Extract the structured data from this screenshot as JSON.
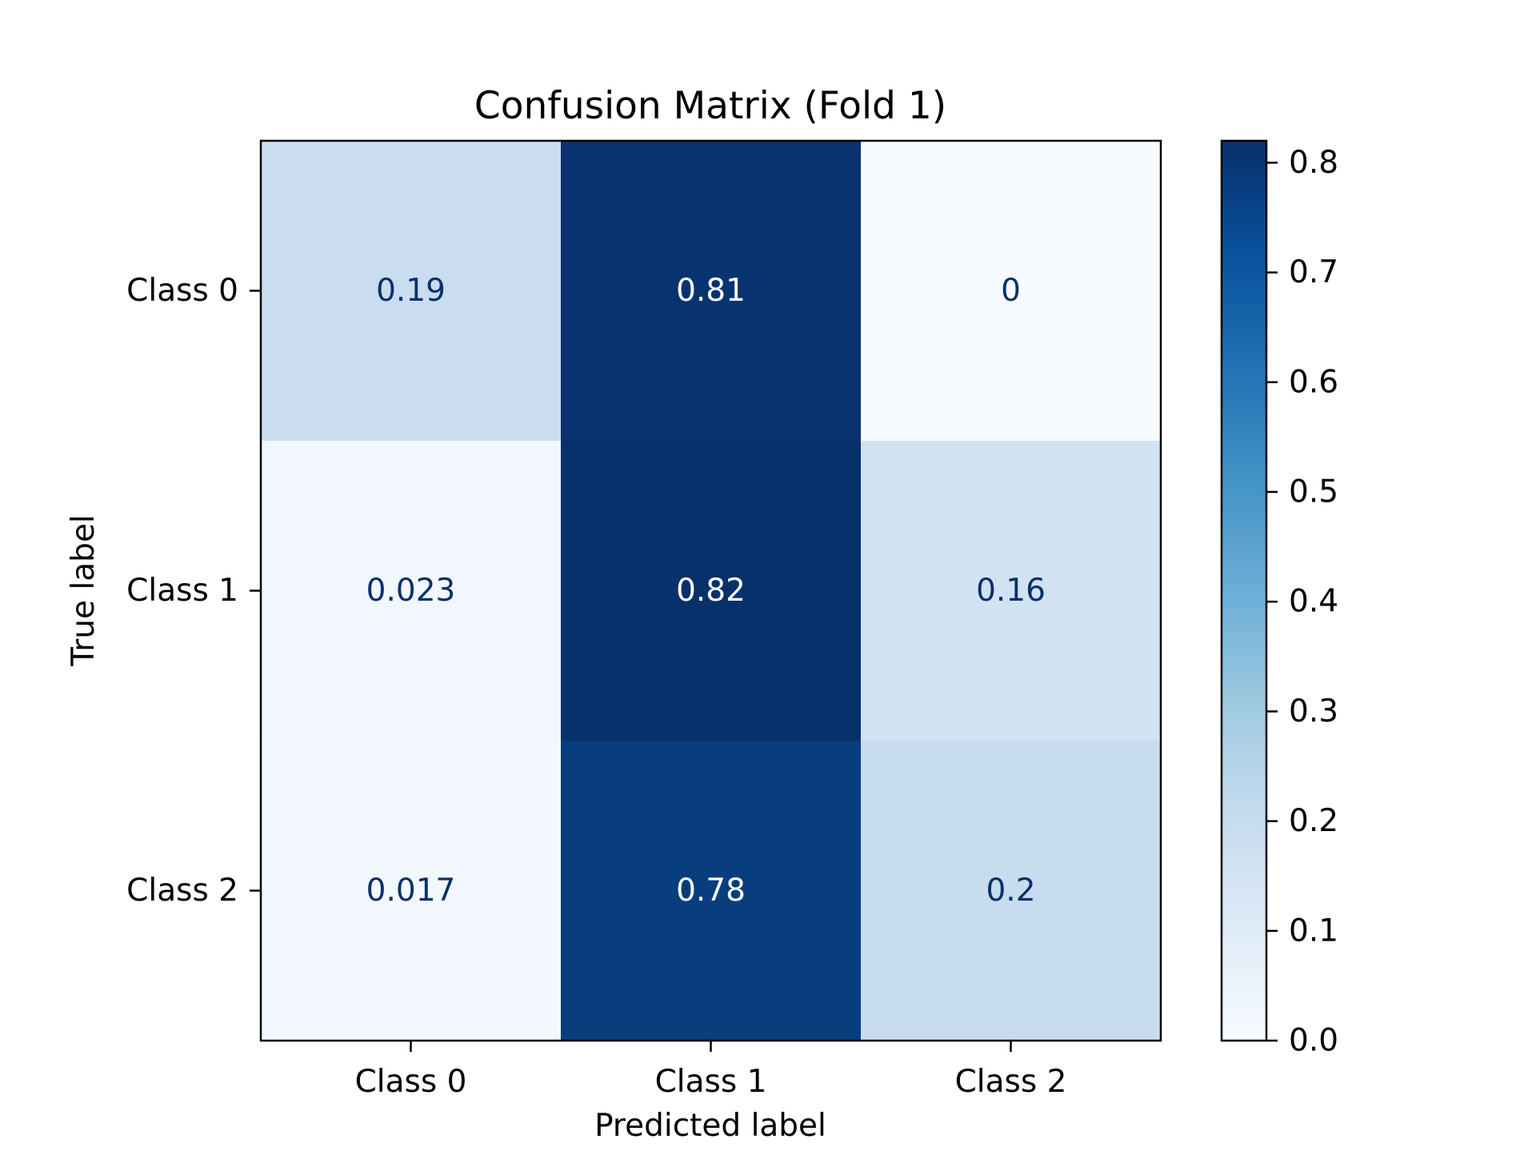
{
  "chart_data": {
    "type": "heatmap",
    "title": "Confusion Matrix (Fold 1)",
    "xlabel": "Predicted label",
    "ylabel": "True label",
    "x_categories": [
      "Class 0",
      "Class 1",
      "Class 2"
    ],
    "y_categories": [
      "Class 0",
      "Class 1",
      "Class 2"
    ],
    "values": [
      [
        0.19,
        0.81,
        0
      ],
      [
        0.023,
        0.82,
        0.16
      ],
      [
        0.017,
        0.78,
        0.2
      ]
    ],
    "value_labels": [
      [
        "0.19",
        "0.81",
        "0"
      ],
      [
        "0.023",
        "0.82",
        "0.16"
      ],
      [
        "0.017",
        "0.78",
        "0.2"
      ]
    ],
    "colormap": "Blues",
    "colorbar": {
      "range": [
        0,
        0.82
      ],
      "ticks": [
        0.0,
        0.1,
        0.2,
        0.3,
        0.4,
        0.5,
        0.6,
        0.7,
        0.8
      ],
      "tick_labels": [
        "0.0",
        "0.1",
        "0.2",
        "0.3",
        "0.4",
        "0.5",
        "0.6",
        "0.7",
        "0.8"
      ]
    },
    "grid": false,
    "text_colors": {
      "light_cells": "#08306b",
      "dark_cells": "#ffffff"
    }
  }
}
